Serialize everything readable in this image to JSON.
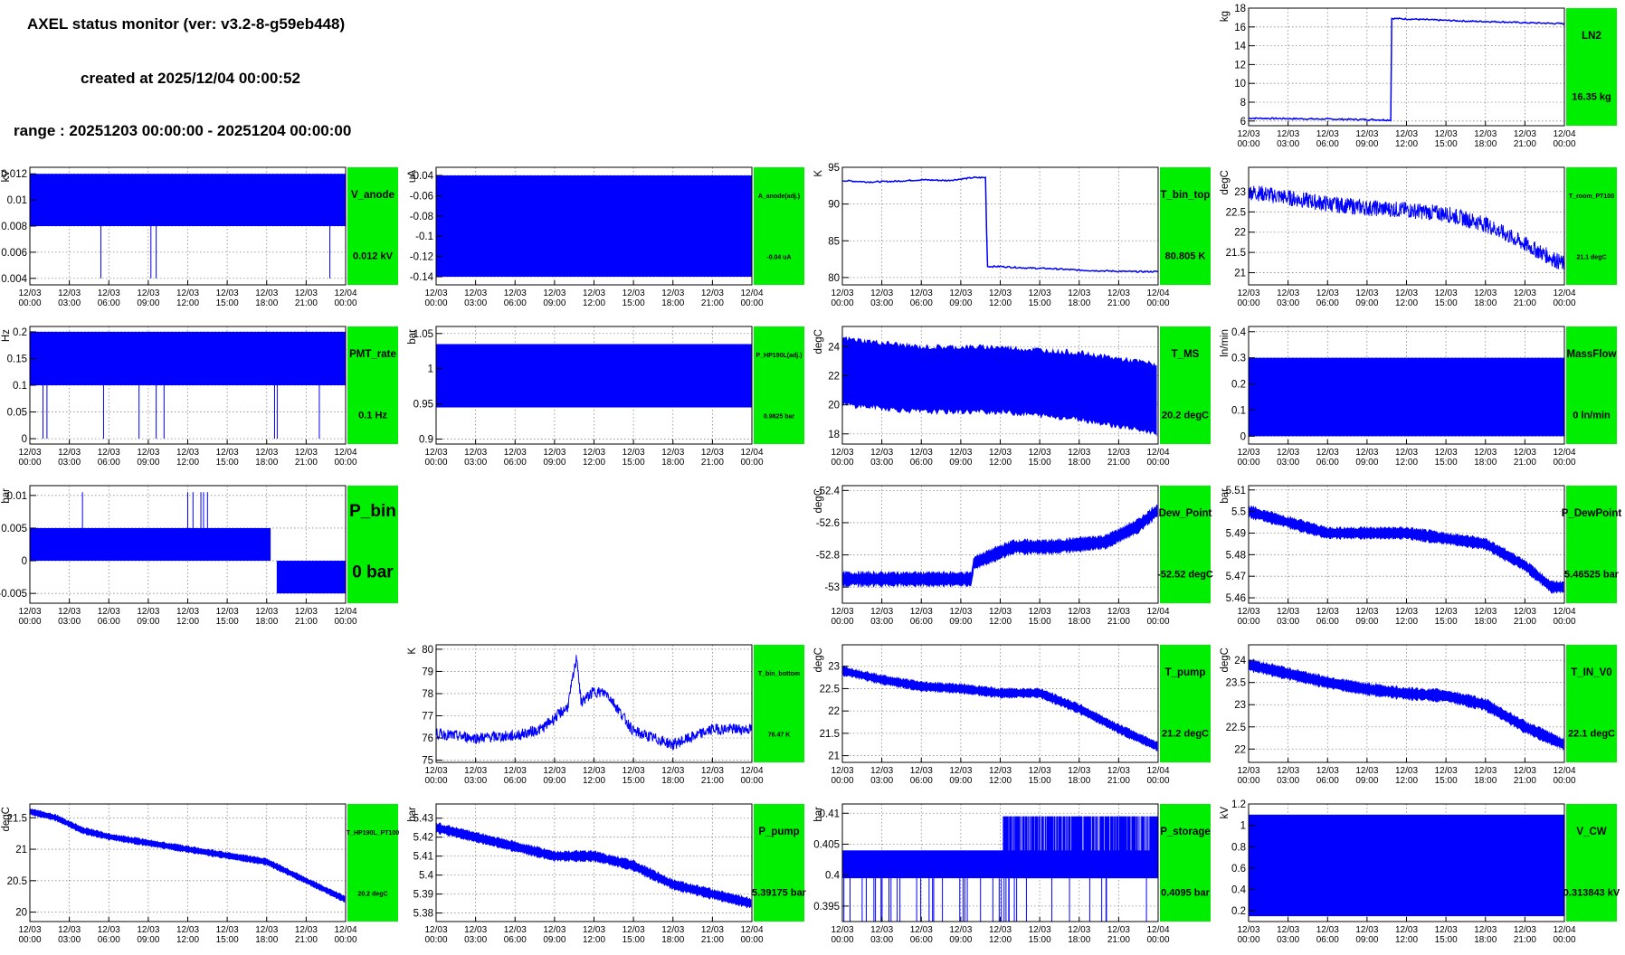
{
  "header": {
    "title": "AXEL status monitor (ver: v3.2-8-g59eb448)",
    "created": "created at 2025/12/04 00:00:52",
    "range": "range : 20251203 00:00:00 - 20251204 00:00:00"
  },
  "colors": {
    "series": "#0000ff",
    "status_ok": "#00ee00",
    "grid": "#888888"
  },
  "x_tick_labels": [
    [
      "12/03",
      "00:00"
    ],
    [
      "12/03",
      "03:00"
    ],
    [
      "12/03",
      "06:00"
    ],
    [
      "12/03",
      "09:00"
    ],
    [
      "12/03",
      "12:00"
    ],
    [
      "12/03",
      "15:00"
    ],
    [
      "12/03",
      "18:00"
    ],
    [
      "12/03",
      "21:00"
    ],
    [
      "12/04",
      "00:00"
    ]
  ],
  "chart_data": [
    {
      "id": "LN2",
      "type": "line",
      "ylabel": "kg",
      "ylim": [
        5.5,
        18
      ],
      "yticks": [
        "6",
        "8",
        "10",
        "12",
        "14",
        "16",
        "18"
      ],
      "yticks_v": [
        6,
        8,
        10,
        12,
        14,
        16,
        18
      ],
      "status_name": "LN2",
      "status_value": "16.35 kg",
      "style": "line",
      "series": {
        "x": [
          0,
          3,
          6,
          9,
          10.8,
          10.82,
          11,
          13,
          15,
          17,
          19,
          21,
          24
        ],
        "y": [
          6.3,
          6.25,
          6.2,
          6.15,
          6.1,
          16.9,
          16.9,
          16.8,
          16.7,
          16.6,
          16.55,
          16.45,
          16.35
        ]
      }
    },
    {
      "id": "V_anode",
      "type": "line",
      "ylabel": "kV",
      "ylim": [
        0.0035,
        0.0125
      ],
      "yticks": [
        "0.004",
        "0.006",
        "0.008",
        "0.01",
        "0.012"
      ],
      "yticks_v": [
        0.004,
        0.006,
        0.008,
        0.01,
        0.012
      ],
      "status_name": "V_anode",
      "status_value": "0.012 kV",
      "style": "band",
      "band": [
        0.008,
        0.012
      ],
      "spikes": {
        "x": [
          5.4,
          9.2,
          9.6,
          22.8
        ],
        "to": 0.004
      }
    },
    {
      "id": "A_anode",
      "type": "line",
      "ylabel": "uA",
      "ylim": [
        -0.148,
        -0.032
      ],
      "yticks": [
        "-0.14",
        "-0.12",
        "-0.1",
        "-0.08",
        "-0.06",
        "-0.04"
      ],
      "yticks_v": [
        -0.14,
        -0.12,
        -0.1,
        -0.08,
        -0.06,
        -0.04
      ],
      "status_name": "A_anode(adj.)",
      "status_value": "-0.04 uA",
      "style": "band",
      "band": [
        -0.14,
        -0.04
      ]
    },
    {
      "id": "T_bin_top",
      "type": "line",
      "ylabel": "K",
      "ylim": [
        79,
        95
      ],
      "yticks": [
        "80",
        "85",
        "90",
        "95"
      ],
      "yticks_v": [
        80,
        85,
        90,
        95
      ],
      "status_name": "T_bin_top",
      "status_value": "80.805 K",
      "style": "line",
      "series": {
        "x": [
          0,
          2,
          4,
          6,
          8,
          10,
          10.9,
          11.0,
          12,
          14,
          16,
          18,
          20,
          22,
          24
        ],
        "y": [
          93.2,
          93.0,
          93.1,
          93.3,
          93.2,
          93.6,
          93.6,
          81.5,
          81.5,
          81.3,
          81.2,
          81.0,
          80.9,
          80.8,
          80.8
        ]
      }
    },
    {
      "id": "T_room_PT100",
      "type": "line",
      "ylabel": "degC",
      "ylim": [
        20.7,
        23.6
      ],
      "yticks": [
        "21",
        "21.5",
        "22",
        "22.5",
        "23"
      ],
      "yticks_v": [
        21,
        21.5,
        22,
        22.5,
        23
      ],
      "status_name": "T_room_PT100",
      "status_value": "21.1 degC",
      "style": "noisy",
      "series": {
        "x": [
          0,
          3,
          6,
          9,
          12,
          15,
          18,
          21,
          24
        ],
        "y": [
          23.0,
          22.85,
          22.7,
          22.6,
          22.55,
          22.45,
          22.2,
          21.7,
          21.2
        ]
      },
      "noise": 0.2
    },
    {
      "id": "PMT_rate",
      "type": "line",
      "ylabel": "Hz",
      "ylim": [
        -0.01,
        0.21
      ],
      "yticks": [
        "0",
        "0.05",
        "0.1",
        "0.15",
        "0.2"
      ],
      "yticks_v": [
        0,
        0.05,
        0.1,
        0.15,
        0.2
      ],
      "status_name": "PMT_rate",
      "status_value": "0.1 Hz",
      "style": "band",
      "band": [
        0.1,
        0.2
      ],
      "spikes": {
        "x": [
          1.0,
          1.3,
          5.6,
          8.3,
          9.6,
          10.2,
          18.6,
          18.8,
          22.0
        ],
        "to": 0.0
      }
    },
    {
      "id": "P_HP190L",
      "type": "line",
      "ylabel": "bar",
      "ylim": [
        0.893,
        1.06
      ],
      "yticks": [
        "0.9",
        "0.95",
        "1",
        "1.05"
      ],
      "yticks_v": [
        0.9,
        0.95,
        1,
        1.05
      ],
      "status_name": "P_HP190L(adj.)",
      "status_value": "0.9825 bar",
      "style": "band",
      "band": [
        0.945,
        1.035
      ]
    },
    {
      "id": "T_MS",
      "type": "line",
      "ylabel": "degC",
      "ylim": [
        17.3,
        25.4
      ],
      "yticks": [
        "18",
        "20",
        "22",
        "24"
      ],
      "yticks_v": [
        18,
        20,
        22,
        24
      ],
      "status_name": "T_MS",
      "status_value": "20.2 degC",
      "style": "drift",
      "upper": {
        "x": [
          0,
          6,
          12,
          18,
          24
        ],
        "y": [
          24.6,
          24.0,
          24.0,
          23.6,
          22.8
        ]
      },
      "lower": {
        "x": [
          0,
          6,
          12,
          18,
          24
        ],
        "y": [
          20.0,
          19.5,
          19.5,
          19.0,
          18.0
        ]
      }
    },
    {
      "id": "MassFlow",
      "type": "line",
      "ylabel": "ln/min",
      "ylim": [
        -0.03,
        0.42
      ],
      "yticks": [
        "0",
        "0.1",
        "0.2",
        "0.3",
        "0.4"
      ],
      "yticks_v": [
        0,
        0.1,
        0.2,
        0.3,
        0.4
      ],
      "status_name": "MassFlow",
      "status_value": "0 ln/min",
      "style": "band",
      "band": [
        0.0,
        0.3
      ]
    },
    {
      "id": "P_bin",
      "type": "line",
      "ylabel": "bar",
      "ylim": [
        -0.0065,
        0.0115
      ],
      "yticks": [
        "-0.005",
        "0",
        "0.005",
        "0.01"
      ],
      "yticks_v": [
        -0.005,
        0,
        0.005,
        0.01
      ],
      "status_name": "P_bin",
      "status_value": "0 bar",
      "style": "step",
      "series": {
        "x": [
          0,
          18.3,
          18.35,
          24
        ],
        "y": [
          0.005,
          0.005,
          -0.005,
          -0.005
        ]
      },
      "band_height": 0.005,
      "spikes": {
        "x": [
          4,
          12,
          12.4,
          13,
          13.2,
          13.5
        ],
        "to": 0.0105
      }
    },
    {
      "id": "Dew_Point",
      "type": "line",
      "ylabel": "degC",
      "ylim": [
        -53.1,
        -52.37
      ],
      "yticks": [
        "-53",
        "-52.8",
        "-52.6",
        "-52.4"
      ],
      "yticks_v": [
        -53,
        -52.8,
        -52.6,
        -52.4
      ],
      "status_name": "Dew_Point",
      "status_value": "-52.52 degC",
      "style": "stepband",
      "series": {
        "x": [
          0,
          9.8,
          10,
          13,
          16,
          20,
          22.5,
          24
        ],
        "y": [
          -52.95,
          -52.95,
          -52.85,
          -52.75,
          -52.75,
          -52.72,
          -52.62,
          -52.52
        ]
      },
      "band_height": 0.08
    },
    {
      "id": "P_DewPoint",
      "type": "line",
      "ylabel": "bar",
      "ylim": [
        5.4575,
        5.512
      ],
      "yticks": [
        "5.46",
        "5.47",
        "5.48",
        "5.49",
        "5.5",
        "5.51"
      ],
      "yticks_v": [
        5.46,
        5.47,
        5.48,
        5.49,
        5.5,
        5.51
      ],
      "status_name": "P_DewPoint",
      "status_value": "5.46525 bar",
      "style": "stepband",
      "series": {
        "x": [
          0,
          3,
          6,
          12,
          18,
          21,
          23,
          24
        ],
        "y": [
          5.5,
          5.495,
          5.49,
          5.49,
          5.485,
          5.475,
          5.465,
          5.465
        ]
      },
      "band_height": 0.005
    },
    {
      "id": "T_bin_bottom",
      "type": "line",
      "ylabel": "K",
      "ylim": [
        74.9,
        80.2
      ],
      "yticks": [
        "75",
        "76",
        "77",
        "78",
        "79",
        "80"
      ],
      "yticks_v": [
        75,
        76,
        77,
        78,
        79,
        80
      ],
      "status_name": "T_bin_bottom",
      "status_value": "76.47 K",
      "style": "noisy",
      "series": {
        "x": [
          0,
          3,
          6,
          8,
          10,
          10.7,
          11,
          12,
          13,
          15,
          18,
          21,
          24
        ],
        "y": [
          76.2,
          76.0,
          76.1,
          76.4,
          77.4,
          79.7,
          77.6,
          78.1,
          78.0,
          76.3,
          75.7,
          76.4,
          76.4
        ]
      },
      "noise": 0.25
    },
    {
      "id": "T_pump",
      "type": "line",
      "ylabel": "degC",
      "ylim": [
        20.85,
        23.48
      ],
      "yticks": [
        "21",
        "21.5",
        "22",
        "22.5",
        "23"
      ],
      "yticks_v": [
        21,
        21.5,
        22,
        22.5,
        23
      ],
      "status_name": "T_pump",
      "status_value": "21.2 degC",
      "style": "stepband",
      "series": {
        "x": [
          0,
          3,
          6,
          9,
          12,
          15,
          18,
          21,
          24
        ],
        "y": [
          22.9,
          22.7,
          22.55,
          22.5,
          22.4,
          22.4,
          22.05,
          21.6,
          21.2
        ]
      },
      "band_height": 0.2
    },
    {
      "id": "T_IN_V0",
      "type": "line",
      "ylabel": "degC",
      "ylim": [
        21.7,
        24.35
      ],
      "yticks": [
        "22",
        "22.5",
        "23",
        "23.5",
        "24"
      ],
      "yticks_v": [
        22,
        22.5,
        23,
        23.5,
        24
      ],
      "status_name": "T_IN_V0",
      "status_value": "22.1 degC",
      "style": "stepband",
      "series": {
        "x": [
          0,
          3,
          6,
          9,
          12,
          15,
          18,
          21,
          24
        ],
        "y": [
          23.9,
          23.7,
          23.5,
          23.35,
          23.25,
          23.2,
          23.0,
          22.5,
          22.1
        ]
      },
      "band_height": 0.25
    },
    {
      "id": "T_HP190L_PT100",
      "type": "line",
      "ylabel": "degC",
      "ylim": [
        19.85,
        21.72
      ],
      "yticks": [
        "20",
        "20.5",
        "21",
        "21.5"
      ],
      "yticks_v": [
        20,
        20.5,
        21,
        21.5
      ],
      "status_name": "T_HP190L_PT100",
      "status_value": "20.2 degC",
      "style": "stepband",
      "series": {
        "x": [
          0,
          2,
          4,
          6,
          9,
          12,
          15,
          18,
          21,
          24
        ],
        "y": [
          21.6,
          21.5,
          21.3,
          21.2,
          21.1,
          21.0,
          20.9,
          20.8,
          20.5,
          20.2
        ]
      },
      "band_height": 0.1
    },
    {
      "id": "P_pump",
      "type": "line",
      "ylabel": "bar",
      "ylim": [
        5.3755,
        5.4375
      ],
      "yticks": [
        "5.38",
        "5.39",
        "5.4",
        "5.41",
        "5.42",
        "5.43"
      ],
      "yticks_v": [
        5.38,
        5.39,
        5.4,
        5.41,
        5.42,
        5.43
      ],
      "status_name": "P_pump",
      "status_value": "5.39175 bar",
      "style": "stepband",
      "series": {
        "x": [
          0,
          3,
          6,
          9,
          12,
          15,
          18,
          21,
          24
        ],
        "y": [
          5.425,
          5.42,
          5.415,
          5.41,
          5.41,
          5.405,
          5.395,
          5.39,
          5.385
        ]
      },
      "band_height": 0.005
    },
    {
      "id": "P_storage",
      "type": "line",
      "ylabel": "bar",
      "ylim": [
        0.3925,
        0.4115
      ],
      "yticks": [
        "0.395",
        "0.4",
        "0.405",
        "0.41"
      ],
      "yticks_v": [
        0.395,
        0.4,
        0.405,
        0.41
      ],
      "status_name": "P_storage",
      "status_value": "0.4095 bar",
      "style": "band",
      "band": [
        0.3995,
        0.404
      ],
      "upper_band": {
        "from": 12.2,
        "range": [
          0.3995,
          0.4095
        ]
      }
    },
    {
      "id": "V_CW",
      "type": "line",
      "ylabel": "kV",
      "ylim": [
        0.1,
        1.2
      ],
      "yticks": [
        "0.2",
        "0.4",
        "0.6",
        "0.8",
        "1",
        "1.2"
      ],
      "yticks_v": [
        0.2,
        0.4,
        0.6,
        0.8,
        1,
        1.2
      ],
      "status_name": "V_CW",
      "status_value": "0.313843 kV",
      "style": "band",
      "band": [
        0.15,
        1.1
      ]
    }
  ]
}
